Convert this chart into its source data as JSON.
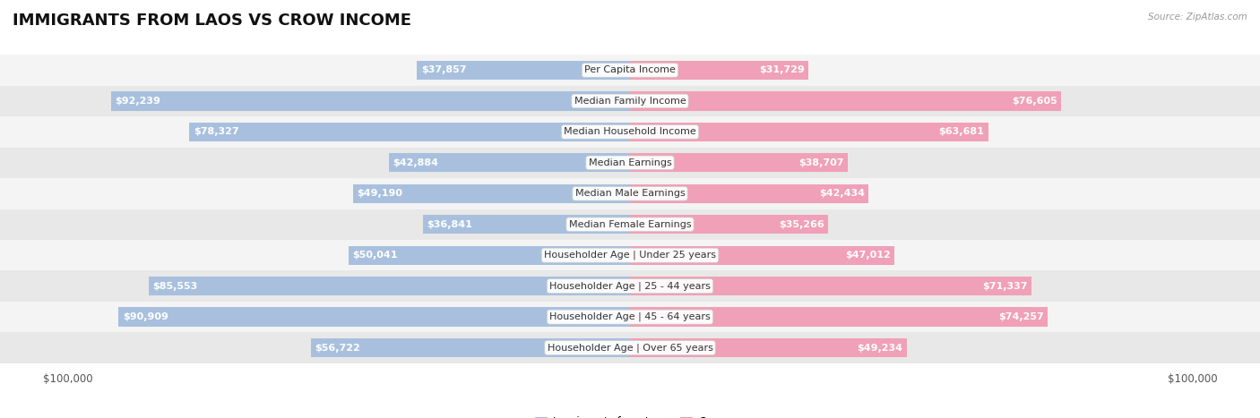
{
  "title": "IMMIGRANTS FROM LAOS VS CROW INCOME",
  "source": "Source: ZipAtlas.com",
  "categories": [
    "Per Capita Income",
    "Median Family Income",
    "Median Household Income",
    "Median Earnings",
    "Median Male Earnings",
    "Median Female Earnings",
    "Householder Age | Under 25 years",
    "Householder Age | 25 - 44 years",
    "Householder Age | 45 - 64 years",
    "Householder Age | Over 65 years"
  ],
  "laos_values": [
    37857,
    92239,
    78327,
    42884,
    49190,
    36841,
    50041,
    85553,
    90909,
    56722
  ],
  "crow_values": [
    31729,
    76605,
    63681,
    38707,
    42434,
    35266,
    47012,
    71337,
    74257,
    49234
  ],
  "laos_color": "#a8c0de",
  "crow_color": "#f0a0b8",
  "row_bg_even": "#f4f4f4",
  "row_bg_odd": "#e8e8e8",
  "max_value": 100000,
  "xlabel_left": "$100,000",
  "xlabel_right": "$100,000",
  "legend_laos": "Immigrants from Laos",
  "legend_crow": "Crow",
  "title_fontsize": 13,
  "cat_fontsize": 8,
  "value_fontsize": 8,
  "axis_fontsize": 8.5,
  "background_color": "#ffffff",
  "inside_threshold": 25000
}
